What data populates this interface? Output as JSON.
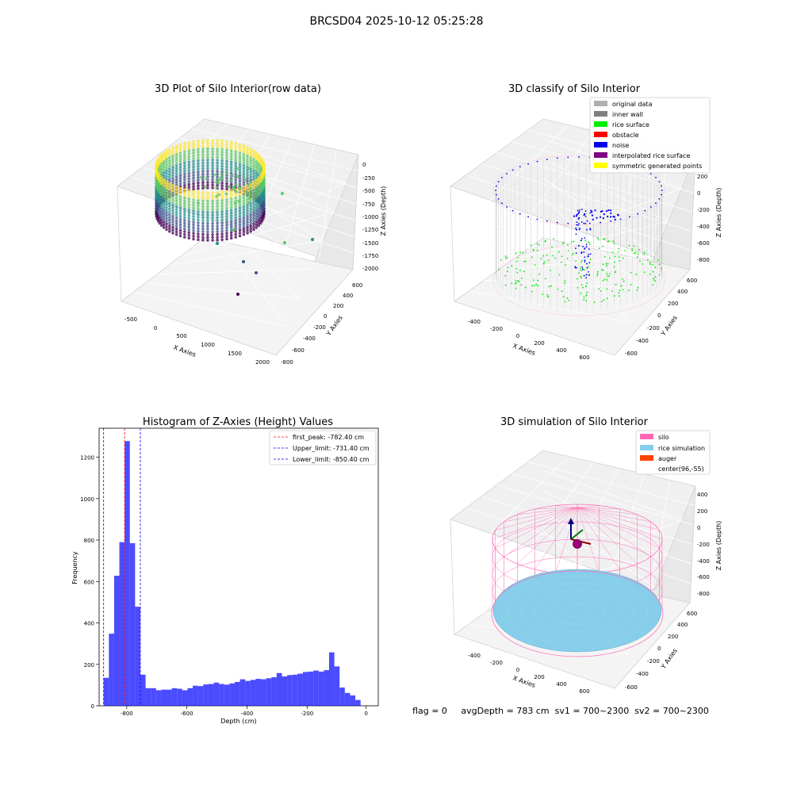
{
  "figure": {
    "suptitle": "BRCSD04 2025-10-12 05:25:28",
    "status_line": "flag = 0     avgDepth = 783 cm  sv1 = 700~2300  sv2 = 700~2300"
  },
  "panels": {
    "raw": {
      "title": "3D Plot of Silo Interior(row data)",
      "xlabel": "X Axies",
      "ylabel": "Y Axies",
      "zlabel": "Z Axies (Depth)",
      "xticks": [
        "-500",
        "0",
        "500",
        "1000",
        "1500",
        "2000"
      ],
      "yticks": [
        "-800",
        "-600",
        "-400",
        "-200",
        "0",
        "200",
        "400",
        "600"
      ],
      "zticks": [
        "-2000",
        "-1750",
        "-1500",
        "-1250",
        "-1000",
        "-750",
        "-500",
        "-250",
        "0"
      ],
      "colormap": [
        "#440154",
        "#3b528b",
        "#21908d",
        "#5dc863",
        "#fde725"
      ]
    },
    "classify": {
      "title": "3D classify of Silo Interior",
      "xlabel": "X Axies",
      "ylabel": "Y Axies",
      "zlabel": "Z Axies (Depth)",
      "xticks": [
        "-400",
        "-200",
        "0",
        "200",
        "400",
        "600"
      ],
      "yticks": [
        "-600",
        "-400",
        "-200",
        "0",
        "200",
        "400",
        "600"
      ],
      "zticks": [
        "-800",
        "-600",
        "-400",
        "-200",
        "0",
        "200"
      ],
      "legend": [
        {
          "label": "original data",
          "color": "#b0b0b0"
        },
        {
          "label": "inner wall",
          "color": "#808080"
        },
        {
          "label": "rice surface",
          "color": "#00ee00"
        },
        {
          "label": "obstacle",
          "color": "#ff0000"
        },
        {
          "label": "noise",
          "color": "#0000ee"
        },
        {
          "label": "interpolated rice surface",
          "color": "#800080"
        },
        {
          "label": "symmetric generated points",
          "color": "#ffff00"
        }
      ],
      "outline_color": "#ff99cc"
    },
    "histogram": {
      "title": "Histogram of Z-Axies (Height) Values",
      "xlabel": "Depth (cm)",
      "ylabel": "Frequency",
      "xticks": [
        "-800",
        "-600",
        "-400",
        "-200",
        "0"
      ],
      "yticks": [
        "0",
        "200",
        "400",
        "600",
        "800",
        "1000",
        "1200"
      ],
      "legend": [
        {
          "label": "first_peak: -782.40 cm",
          "color": "#ff0000"
        },
        {
          "label": "Upper_limit: -731.40 cm",
          "color": "#0000ff"
        },
        {
          "label": "Lower_limit: -850.40 cm",
          "color": "#0000ff"
        }
      ]
    },
    "simulation": {
      "title": "3D simulation of Silo Interior",
      "xlabel": "X Axies",
      "ylabel": "Y Axies",
      "zlabel": "Z Axies (Depth)",
      "xticks": [
        "-400",
        "-200",
        "0",
        "200",
        "400",
        "600"
      ],
      "yticks": [
        "-600",
        "-400",
        "-200",
        "0",
        "200",
        "400",
        "600"
      ],
      "zticks": [
        "-800",
        "-600",
        "-400",
        "-200",
        "0",
        "200",
        "400"
      ],
      "legend": [
        {
          "label": "silo",
          "color": "#ff69b4"
        },
        {
          "label": "rice simulation",
          "color": "#87ceeb"
        },
        {
          "label": "auger",
          "color": "#ff4500"
        },
        {
          "label": "center(96,-55)",
          "color": ""
        }
      ],
      "silo_color": "#ff69b4",
      "rice_color": "#87ceeb"
    }
  },
  "chart_data": {
    "type": "bar",
    "title": "Histogram of Z-Axies (Height) Values",
    "xlabel": "Depth (cm)",
    "ylabel": "Frequency",
    "xlim": [
      -865,
      40
    ],
    "ylim": [
      0,
      1340
    ],
    "bar_color": "#0000ff",
    "bins": [
      {
        "x0": -850.4,
        "x1": -833.4,
        "count": 135
      },
      {
        "x0": -833.4,
        "x1": -816.4,
        "count": 348
      },
      {
        "x0": -816.4,
        "x1": -799.4,
        "count": 628
      },
      {
        "x0": -799.4,
        "x1": -782.4,
        "count": 790
      },
      {
        "x0": -782.4,
        "x1": -765.4,
        "count": 1278
      },
      {
        "x0": -765.4,
        "x1": -748.4,
        "count": 785
      },
      {
        "x0": -748.4,
        "x1": -731.4,
        "count": 478
      },
      {
        "x0": -731.4,
        "x1": -714.4,
        "count": 150
      },
      {
        "x0": -714.4,
        "x1": -697.4,
        "count": 85
      },
      {
        "x0": -697.4,
        "x1": -680.4,
        "count": 85
      },
      {
        "x0": -680.4,
        "x1": -663.4,
        "count": 75
      },
      {
        "x0": -663.4,
        "x1": -646.4,
        "count": 78
      },
      {
        "x0": -646.4,
        "x1": -629.4,
        "count": 78
      },
      {
        "x0": -629.4,
        "x1": -612.4,
        "count": 85
      },
      {
        "x0": -612.4,
        "x1": -595.4,
        "count": 82
      },
      {
        "x0": -595.4,
        "x1": -578.4,
        "count": 75
      },
      {
        "x0": -578.4,
        "x1": -561.4,
        "count": 85
      },
      {
        "x0": -561.4,
        "x1": -544.4,
        "count": 97
      },
      {
        "x0": -544.4,
        "x1": -527.4,
        "count": 95
      },
      {
        "x0": -527.4,
        "x1": -510.4,
        "count": 103
      },
      {
        "x0": -510.4,
        "x1": -493.4,
        "count": 105
      },
      {
        "x0": -493.4,
        "x1": -476.4,
        "count": 112
      },
      {
        "x0": -476.4,
        "x1": -459.4,
        "count": 105
      },
      {
        "x0": -459.4,
        "x1": -442.4,
        "count": 102
      },
      {
        "x0": -442.4,
        "x1": -425.4,
        "count": 108
      },
      {
        "x0": -425.4,
        "x1": -408.4,
        "count": 115
      },
      {
        "x0": -408.4,
        "x1": -391.4,
        "count": 128
      },
      {
        "x0": -391.4,
        "x1": -374.4,
        "count": 120
      },
      {
        "x0": -374.4,
        "x1": -357.4,
        "count": 125
      },
      {
        "x0": -357.4,
        "x1": -340.4,
        "count": 130
      },
      {
        "x0": -340.4,
        "x1": -323.4,
        "count": 128
      },
      {
        "x0": -323.4,
        "x1": -306.4,
        "count": 133
      },
      {
        "x0": -306.4,
        "x1": -289.4,
        "count": 138
      },
      {
        "x0": -289.4,
        "x1": -272.4,
        "count": 158
      },
      {
        "x0": -272.4,
        "x1": -255.4,
        "count": 142
      },
      {
        "x0": -255.4,
        "x1": -238.4,
        "count": 148
      },
      {
        "x0": -238.4,
        "x1": -221.4,
        "count": 150
      },
      {
        "x0": -221.4,
        "x1": -204.4,
        "count": 155
      },
      {
        "x0": -204.4,
        "x1": -187.4,
        "count": 163
      },
      {
        "x0": -187.4,
        "x1": -170.4,
        "count": 165
      },
      {
        "x0": -170.4,
        "x1": -153.4,
        "count": 170
      },
      {
        "x0": -153.4,
        "x1": -136.4,
        "count": 165
      },
      {
        "x0": -136.4,
        "x1": -119.4,
        "count": 172
      },
      {
        "x0": -119.4,
        "x1": -102.4,
        "count": 258
      },
      {
        "x0": -102.4,
        "x1": -85.4,
        "count": 190
      },
      {
        "x0": -85.4,
        "x1": -68.4,
        "count": 88
      },
      {
        "x0": -68.4,
        "x1": -51.4,
        "count": 62
      },
      {
        "x0": -51.4,
        "x1": -34.4,
        "count": 50
      },
      {
        "x0": -34.4,
        "x1": -17.4,
        "count": 28
      }
    ],
    "vlines": [
      {
        "name": "first_peak",
        "x": -782.4,
        "color": "#ff0000"
      },
      {
        "name": "Upper_limit",
        "x": -731.4,
        "color": "#0000ff"
      },
      {
        "name": "Lower_limit",
        "x": -850.4,
        "color": "#0000ff"
      }
    ]
  }
}
